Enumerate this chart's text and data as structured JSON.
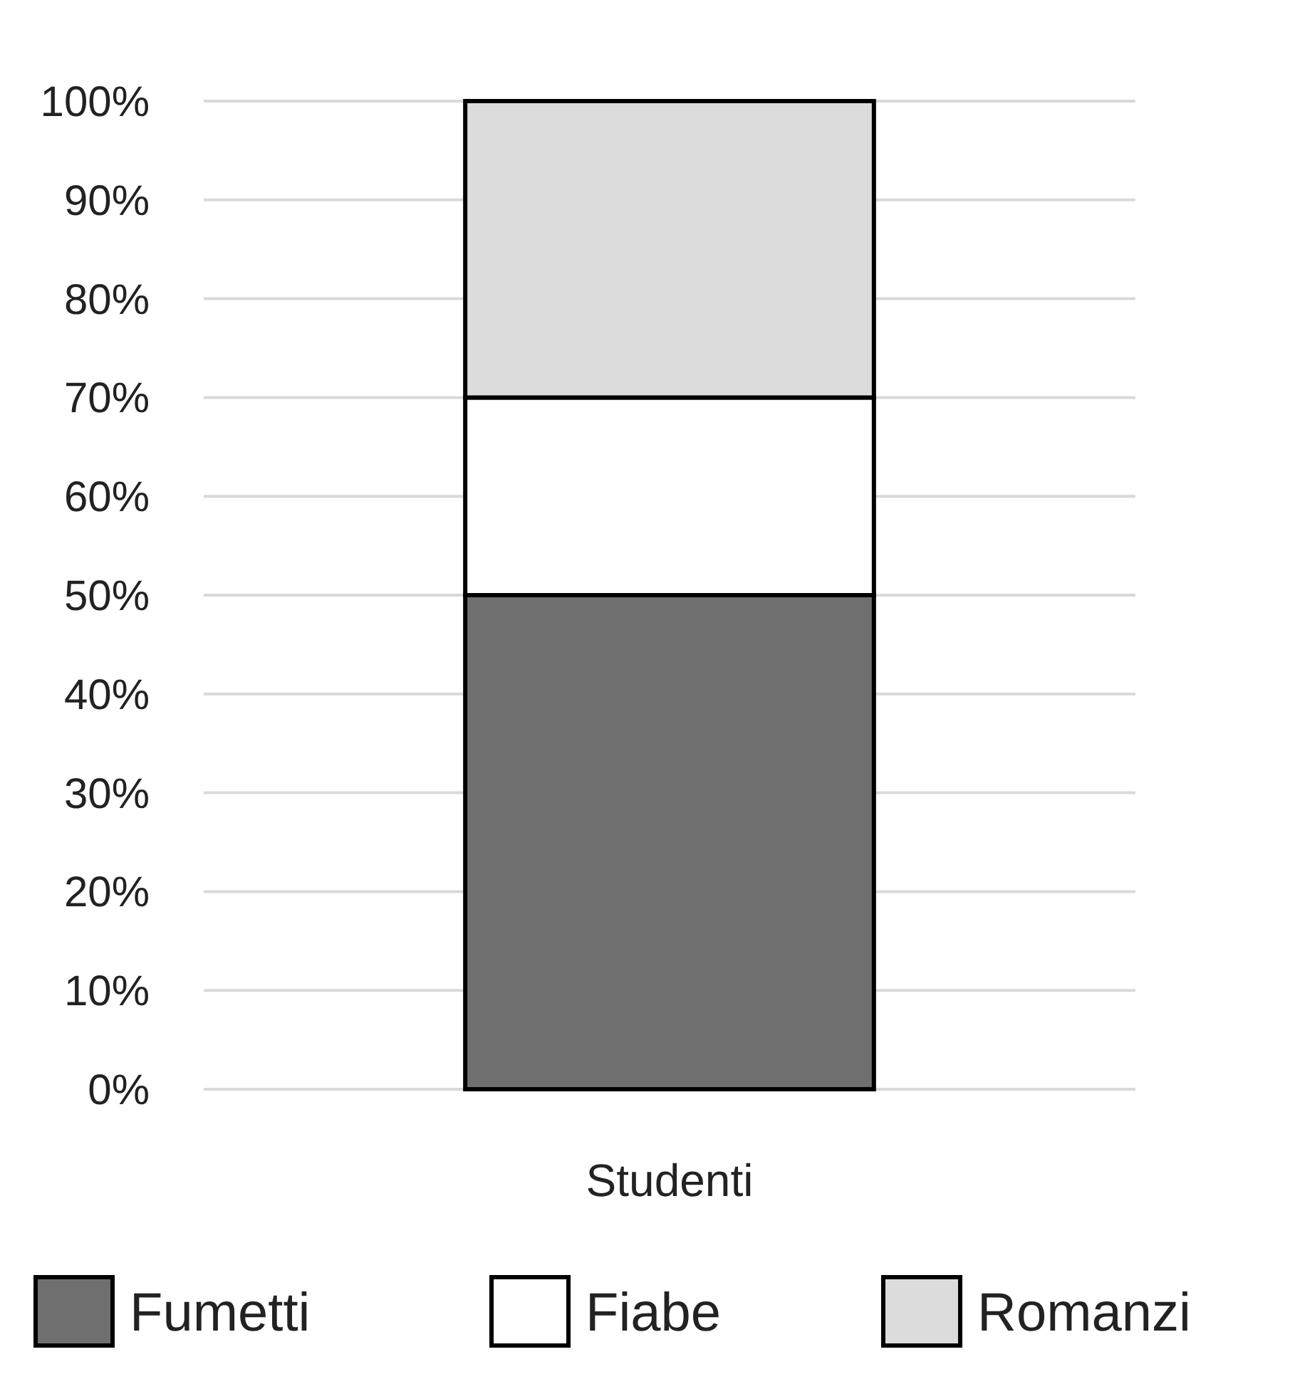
{
  "chart_data": {
    "type": "bar",
    "stacked": true,
    "categories": [
      "Studenti"
    ],
    "series": [
      {
        "name": "Fumetti",
        "color": "#6f6f6f",
        "values": [
          50
        ]
      },
      {
        "name": "Fiabe",
        "color": "#ffffff",
        "values": [
          20
        ]
      },
      {
        "name": "Romanzi",
        "color": "#dcdcdc",
        "values": [
          30
        ]
      }
    ],
    "ylim": [
      0,
      100
    ],
    "yticks": [
      {
        "value": 0,
        "label": "0%"
      },
      {
        "value": 10,
        "label": "10%"
      },
      {
        "value": 20,
        "label": "20%"
      },
      {
        "value": 30,
        "label": "30%"
      },
      {
        "value": 40,
        "label": "40%"
      },
      {
        "value": 50,
        "label": "50%"
      },
      {
        "value": 60,
        "label": "60%"
      },
      {
        "value": 70,
        "label": "70%"
      },
      {
        "value": 80,
        "label": "80%"
      },
      {
        "value": 90,
        "label": "90%"
      },
      {
        "value": 100,
        "label": "100%"
      }
    ],
    "grid": "y",
    "legend": "bottom"
  }
}
